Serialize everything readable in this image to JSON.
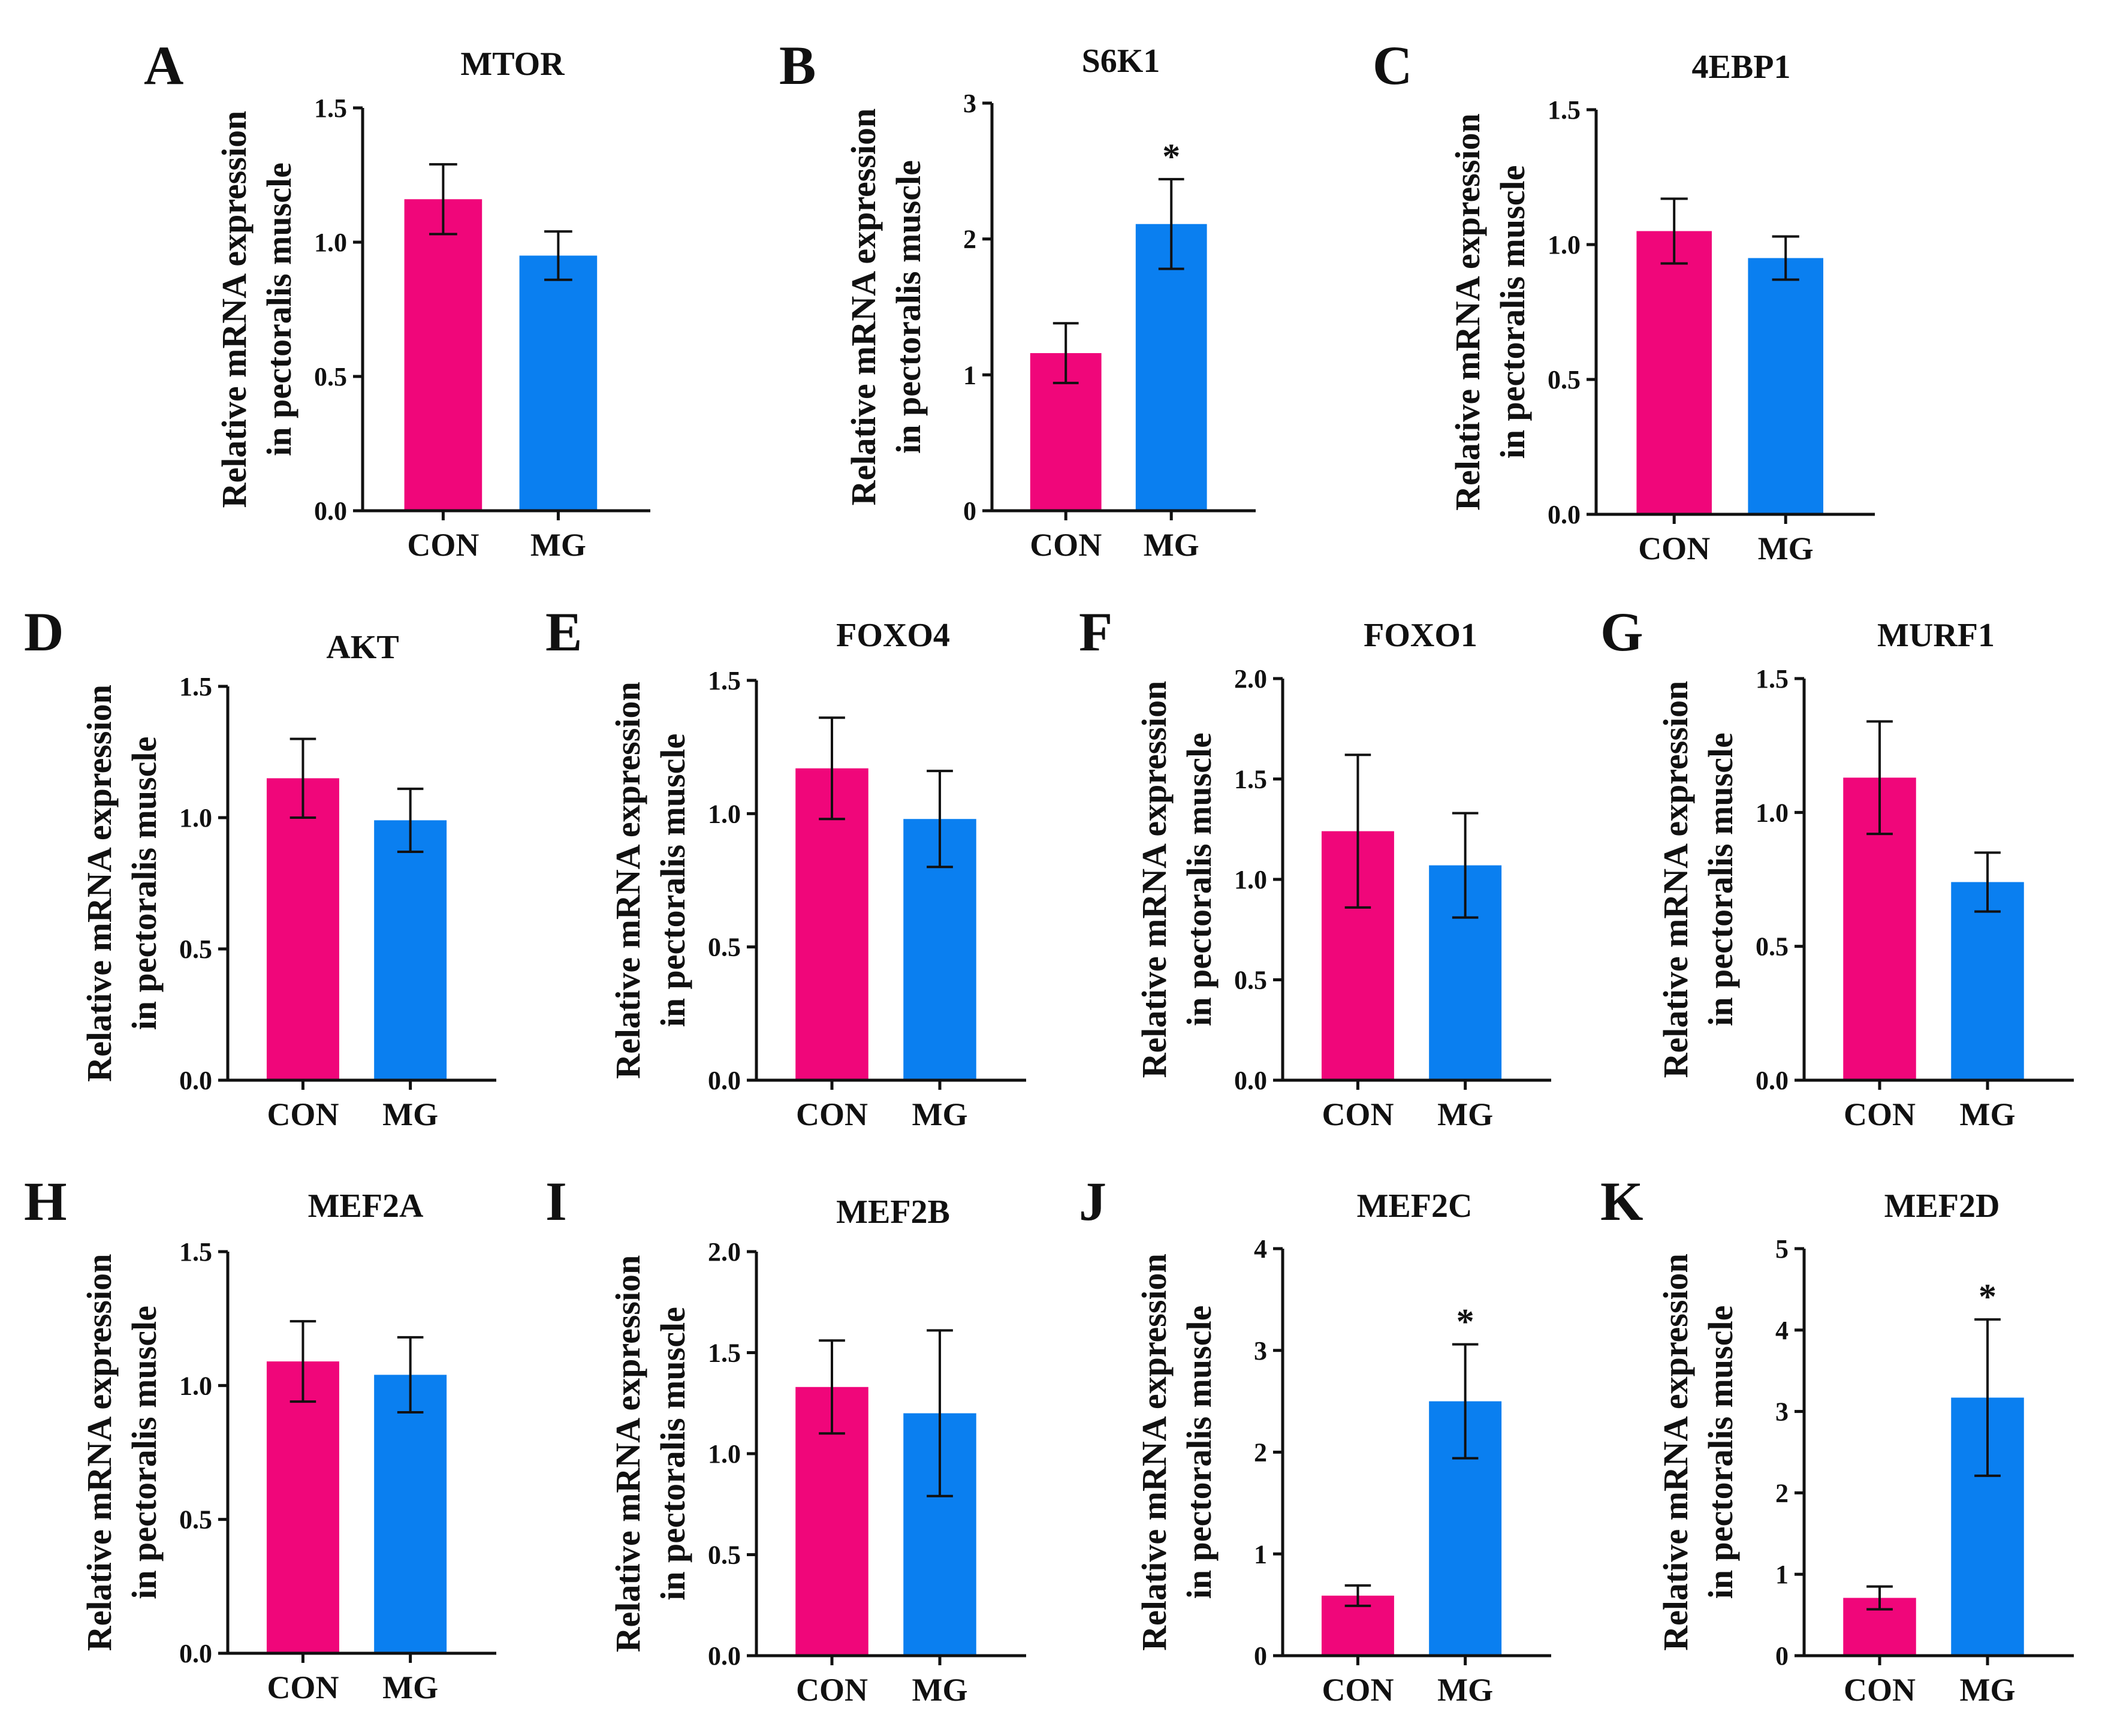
{
  "figure": {
    "ylabel_line1": "Relative mRNA expression",
    "ylabel_line2": "in pectoralis muscle",
    "colors": {
      "CON": "#f0067a",
      "MG": "#0a7ff0"
    }
  },
  "chart_data": [
    {
      "panel": "A",
      "title": "MTOR",
      "type": "bar",
      "categories": [
        "CON",
        "MG"
      ],
      "values": [
        1.16,
        0.95
      ],
      "errors": [
        0.13,
        0.09
      ],
      "ylim": [
        0,
        1.5
      ],
      "yticks": [
        "0.0",
        "0.5",
        "1.0",
        "1.5"
      ],
      "yticks_num": [
        0,
        0.5,
        1.0,
        1.5
      ],
      "significance": [
        "",
        ""
      ]
    },
    {
      "panel": "B",
      "title": "S6K1",
      "type": "bar",
      "categories": [
        "CON",
        "MG"
      ],
      "values": [
        1.16,
        2.11
      ],
      "errors": [
        0.22,
        0.33
      ],
      "ylim": [
        0,
        3
      ],
      "yticks": [
        "0",
        "1",
        "2",
        "3"
      ],
      "yticks_num": [
        0,
        1,
        2,
        3
      ],
      "significance": [
        "",
        "*"
      ]
    },
    {
      "panel": "C",
      "title": "4EBP1",
      "type": "bar",
      "categories": [
        "CON",
        "MG"
      ],
      "values": [
        1.05,
        0.95
      ],
      "errors": [
        0.12,
        0.08
      ],
      "ylim": [
        0,
        1.5
      ],
      "yticks": [
        "0.0",
        "0.5",
        "1.0",
        "1.5"
      ],
      "yticks_num": [
        0,
        0.5,
        1.0,
        1.5
      ],
      "significance": [
        "",
        ""
      ]
    },
    {
      "panel": "D",
      "title": "AKT",
      "type": "bar",
      "categories": [
        "CON",
        "MG"
      ],
      "values": [
        1.15,
        0.99
      ],
      "errors": [
        0.15,
        0.12
      ],
      "ylim": [
        0,
        1.5
      ],
      "yticks": [
        "0.0",
        "0.5",
        "1.0",
        "1.5"
      ],
      "yticks_num": [
        0,
        0.5,
        1.0,
        1.5
      ],
      "significance": [
        "",
        ""
      ]
    },
    {
      "panel": "E",
      "title": "FOXO4",
      "type": "bar",
      "categories": [
        "CON",
        "MG"
      ],
      "values": [
        1.17,
        0.98
      ],
      "errors": [
        0.19,
        0.18
      ],
      "ylim": [
        0,
        1.5
      ],
      "yticks": [
        "0.0",
        "0.5",
        "1.0",
        "1.5"
      ],
      "yticks_num": [
        0,
        0.5,
        1.0,
        1.5
      ],
      "significance": [
        "",
        ""
      ]
    },
    {
      "panel": "F",
      "title": "FOXO1",
      "type": "bar",
      "categories": [
        "CON",
        "MG"
      ],
      "values": [
        1.24,
        1.07
      ],
      "errors": [
        0.38,
        0.26
      ],
      "ylim": [
        0,
        2.0
      ],
      "yticks": [
        "0.0",
        "0.5",
        "1.0",
        "1.5",
        "2.0"
      ],
      "yticks_num": [
        0,
        0.5,
        1.0,
        1.5,
        2.0
      ],
      "significance": [
        "",
        ""
      ]
    },
    {
      "panel": "G",
      "title": "MURF1",
      "type": "bar",
      "categories": [
        "CON",
        "MG"
      ],
      "values": [
        1.13,
        0.74
      ],
      "errors": [
        0.21,
        0.11
      ],
      "ylim": [
        0,
        1.5
      ],
      "yticks": [
        "0.0",
        "0.5",
        "1.0",
        "1.5"
      ],
      "yticks_num": [
        0,
        0.5,
        1.0,
        1.5
      ],
      "significance": [
        "",
        ""
      ]
    },
    {
      "panel": "H",
      "title": "MEF2A",
      "type": "bar",
      "categories": [
        "CON",
        "MG"
      ],
      "values": [
        1.09,
        1.04
      ],
      "errors": [
        0.15,
        0.14
      ],
      "ylim": [
        0,
        1.5
      ],
      "yticks": [
        "0.0",
        "0.5",
        "1.0",
        "1.5"
      ],
      "yticks_num": [
        0,
        0.5,
        1.0,
        1.5
      ],
      "significance": [
        "",
        ""
      ]
    },
    {
      "panel": "I",
      "title": "MEF2B",
      "type": "bar",
      "categories": [
        "CON",
        "MG"
      ],
      "values": [
        1.33,
        1.2
      ],
      "errors": [
        0.23,
        0.41
      ],
      "ylim": [
        0,
        2.0
      ],
      "yticks": [
        "0.0",
        "0.5",
        "1.0",
        "1.5",
        "2.0"
      ],
      "yticks_num": [
        0,
        0.5,
        1.0,
        1.5,
        2.0
      ],
      "significance": [
        "",
        ""
      ]
    },
    {
      "panel": "J",
      "title": "MEF2C",
      "type": "bar",
      "categories": [
        "CON",
        "MG"
      ],
      "values": [
        0.59,
        2.5
      ],
      "errors": [
        0.1,
        0.56
      ],
      "ylim": [
        0,
        4
      ],
      "yticks": [
        "0",
        "1",
        "2",
        "3",
        "4"
      ],
      "yticks_num": [
        0,
        1,
        2,
        3,
        4
      ],
      "significance": [
        "",
        "*"
      ]
    },
    {
      "panel": "K",
      "title": "MEF2D",
      "type": "bar",
      "categories": [
        "CON",
        "MG"
      ],
      "values": [
        0.71,
        3.17
      ],
      "errors": [
        0.14,
        0.96
      ],
      "ylim": [
        0,
        5
      ],
      "yticks": [
        "0",
        "1",
        "2",
        "3",
        "4",
        "5"
      ],
      "yticks_num": [
        0,
        1,
        2,
        3,
        4,
        5
      ],
      "significance": [
        "",
        "*"
      ]
    }
  ]
}
